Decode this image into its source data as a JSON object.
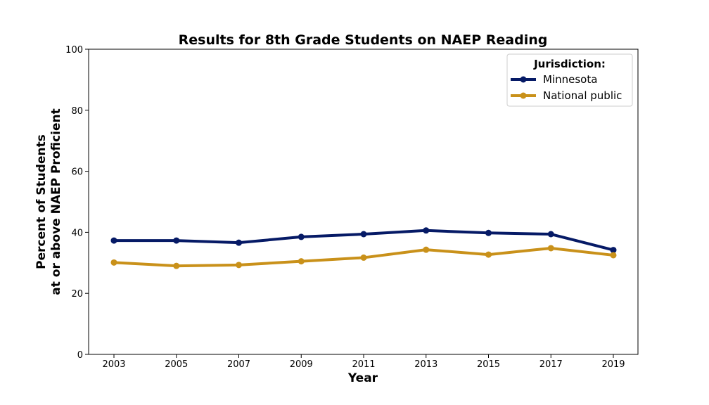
{
  "chart_data": {
    "type": "line",
    "title": "Results for 8th Grade Students on NAEP Reading",
    "xlabel": "Year",
    "ylabel_line1": "Percent of Students",
    "ylabel_line2": "at or above NAEP Proficient",
    "x": [
      "2003",
      "2005",
      "2007",
      "2009",
      "2011",
      "2013",
      "2015",
      "2017",
      "2019"
    ],
    "ylim": [
      0,
      100
    ],
    "yticks": [
      "0",
      "20",
      "40",
      "60",
      "80",
      "100"
    ],
    "legend": {
      "title": "Jurisdiction:",
      "position": "top-right"
    },
    "grid": false,
    "series": [
      {
        "name": "Minnesota",
        "color": "#061a66",
        "values": [
          37.3,
          37.3,
          36.6,
          38.5,
          39.4,
          40.6,
          39.8,
          39.4,
          34.2
        ]
      },
      {
        "name": "National public",
        "color": "#c9911a",
        "values": [
          30.1,
          29.0,
          29.3,
          30.5,
          31.7,
          34.3,
          32.7,
          34.8,
          32.5
        ]
      }
    ]
  }
}
